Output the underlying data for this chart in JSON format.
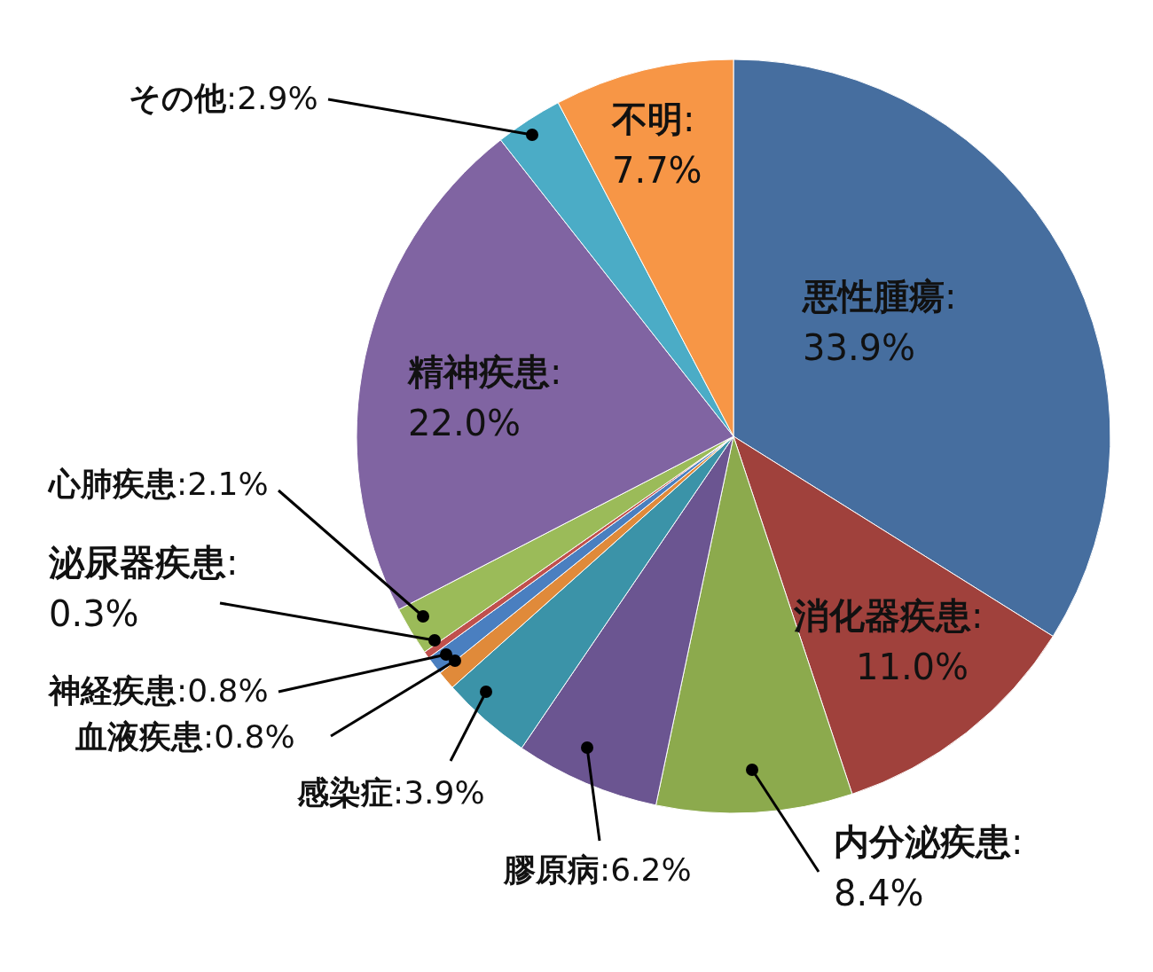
{
  "chart_data": {
    "type": "pie",
    "categories": [
      "悪性腫瘍",
      "消化器疾患",
      "内分泌疾患",
      "膠原病",
      "感染症",
      "血液疾患",
      "神経疾患",
      "泌尿器疾患",
      "心肺疾患",
      "精神疾患",
      "その他",
      "不明"
    ],
    "values": [
      33.9,
      11.0,
      8.4,
      6.2,
      3.9,
      0.8,
      0.8,
      0.3,
      2.1,
      22.0,
      2.9,
      7.7
    ],
    "value_labels": [
      ":33.9%",
      ":11.0%",
      ":8.4%",
      ":6.2%",
      ":3.9%",
      ":0.8%",
      ":0.8%",
      ":0.3%",
      ":2.1%",
      ":22.0%",
      ":2.9%",
      ":7.7%"
    ],
    "colors": [
      "#466e9f",
      "#a0413c",
      "#8caa4d",
      "#6b5591",
      "#3b93a8",
      "#e08a3a",
      "#4a7fc0",
      "#c0504d",
      "#9bbb59",
      "#8064a2",
      "#4bacc6",
      "#f79646"
    ]
  }
}
